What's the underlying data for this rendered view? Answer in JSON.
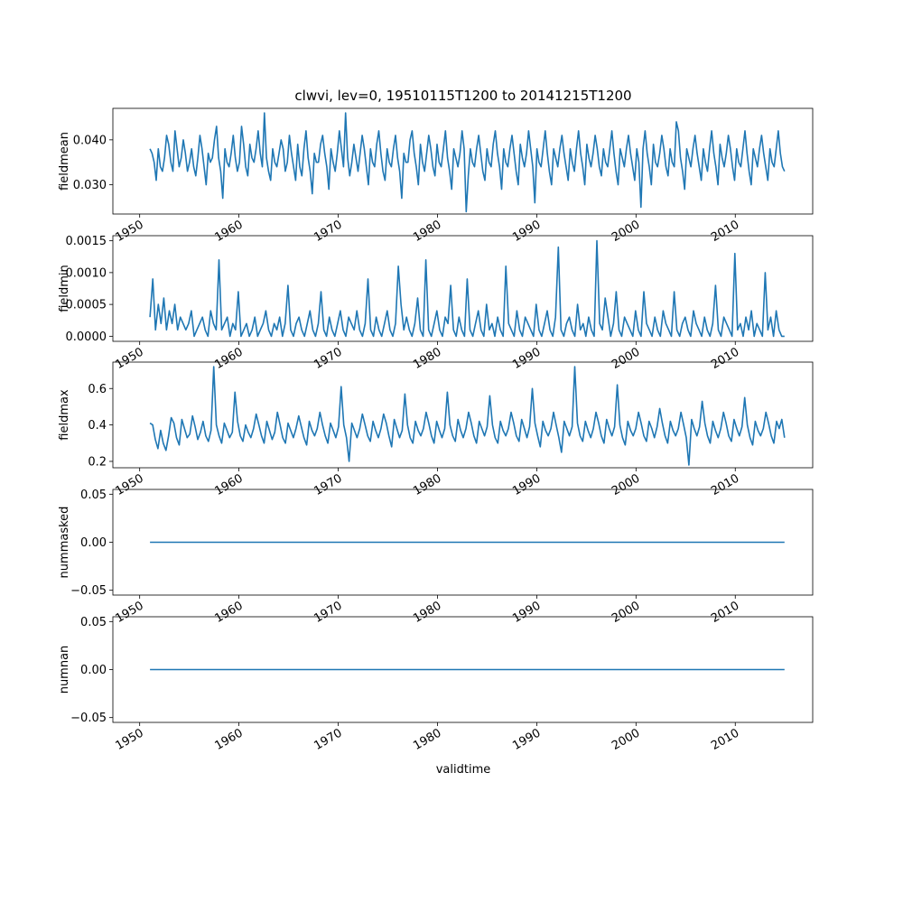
{
  "figure": {
    "title": "clwvi, lev=0, 19510115T1200 to 20141215T1200",
    "xlabel": "validtime"
  },
  "chart_data": [
    {
      "type": "line",
      "ylabel": "fieldmean",
      "x_range": [
        1947.3,
        2017.8
      ],
      "x_ticks": [
        1950,
        1960,
        1970,
        1980,
        1990,
        2000,
        2010
      ],
      "x_tick_labels": [
        "1950",
        "1960",
        "1970",
        "1980",
        "1990",
        "2000",
        "2010"
      ],
      "x_start": 1951.04,
      "x_end": 2014.96,
      "ylim": [
        0.0235,
        0.047
      ],
      "y_ticks": [
        0.03,
        0.04
      ],
      "y_tick_labels": [
        "0.030",
        "0.040"
      ],
      "series": [
        {
          "color": "#1f77b4",
          "values": [
            0.038,
            0.037,
            0.035,
            0.031,
            0.038,
            0.034,
            0.033,
            0.036,
            0.041,
            0.039,
            0.035,
            0.033,
            0.042,
            0.038,
            0.034,
            0.036,
            0.04,
            0.037,
            0.033,
            0.035,
            0.038,
            0.034,
            0.032,
            0.036,
            0.041,
            0.038,
            0.034,
            0.03,
            0.037,
            0.035,
            0.036,
            0.04,
            0.043,
            0.036,
            0.033,
            0.027,
            0.038,
            0.035,
            0.034,
            0.037,
            0.041,
            0.036,
            0.033,
            0.035,
            0.043,
            0.039,
            0.034,
            0.032,
            0.039,
            0.036,
            0.035,
            0.038,
            0.042,
            0.037,
            0.034,
            0.046,
            0.036,
            0.033,
            0.031,
            0.038,
            0.035,
            0.034,
            0.037,
            0.04,
            0.038,
            0.033,
            0.035,
            0.041,
            0.037,
            0.034,
            0.031,
            0.039,
            0.034,
            0.032,
            0.038,
            0.042,
            0.036,
            0.033,
            0.028,
            0.037,
            0.035,
            0.035,
            0.039,
            0.041,
            0.037,
            0.034,
            0.029,
            0.038,
            0.035,
            0.033,
            0.037,
            0.042,
            0.038,
            0.034,
            0.046,
            0.036,
            0.032,
            0.035,
            0.039,
            0.036,
            0.033,
            0.037,
            0.041,
            0.038,
            0.034,
            0.03,
            0.038,
            0.035,
            0.034,
            0.039,
            0.042,
            0.037,
            0.033,
            0.031,
            0.038,
            0.035,
            0.034,
            0.038,
            0.041,
            0.036,
            0.033,
            0.027,
            0.037,
            0.035,
            0.035,
            0.04,
            0.042,
            0.037,
            0.034,
            0.03,
            0.039,
            0.035,
            0.033,
            0.037,
            0.041,
            0.038,
            0.034,
            0.032,
            0.039,
            0.035,
            0.034,
            0.038,
            0.042,
            0.036,
            0.033,
            0.029,
            0.038,
            0.036,
            0.034,
            0.037,
            0.042,
            0.038,
            0.024,
            0.032,
            0.038,
            0.035,
            0.034,
            0.038,
            0.041,
            0.037,
            0.033,
            0.031,
            0.038,
            0.035,
            0.034,
            0.039,
            0.042,
            0.037,
            0.034,
            0.029,
            0.038,
            0.035,
            0.034,
            0.038,
            0.041,
            0.037,
            0.033,
            0.03,
            0.039,
            0.036,
            0.034,
            0.037,
            0.042,
            0.038,
            0.034,
            0.026,
            0.038,
            0.035,
            0.034,
            0.038,
            0.042,
            0.037,
            0.033,
            0.03,
            0.038,
            0.036,
            0.034,
            0.038,
            0.041,
            0.037,
            0.034,
            0.031,
            0.038,
            0.035,
            0.033,
            0.038,
            0.042,
            0.037,
            0.034,
            0.03,
            0.039,
            0.036,
            0.034,
            0.037,
            0.041,
            0.038,
            0.034,
            0.032,
            0.038,
            0.035,
            0.034,
            0.038,
            0.042,
            0.037,
            0.033,
            0.03,
            0.038,
            0.036,
            0.034,
            0.038,
            0.041,
            0.037,
            0.034,
            0.031,
            0.038,
            0.035,
            0.025,
            0.038,
            0.042,
            0.037,
            0.034,
            0.03,
            0.039,
            0.035,
            0.034,
            0.037,
            0.041,
            0.038,
            0.034,
            0.032,
            0.038,
            0.035,
            0.034,
            0.044,
            0.042,
            0.036,
            0.033,
            0.029,
            0.038,
            0.036,
            0.034,
            0.038,
            0.041,
            0.037,
            0.034,
            0.031,
            0.038,
            0.035,
            0.033,
            0.038,
            0.042,
            0.037,
            0.034,
            0.03,
            0.039,
            0.036,
            0.034,
            0.037,
            0.041,
            0.038,
            0.034,
            0.031,
            0.038,
            0.035,
            0.034,
            0.038,
            0.042,
            0.037,
            0.033,
            0.03,
            0.038,
            0.036,
            0.034,
            0.038,
            0.041,
            0.037,
            0.034,
            0.031,
            0.038,
            0.035,
            0.034,
            0.038,
            0.042,
            0.037,
            0.034,
            0.033
          ]
        }
      ]
    },
    {
      "type": "line",
      "ylabel": "fieldmin",
      "x_range": [
        1947.3,
        2017.8
      ],
      "x_ticks": [
        1950,
        1960,
        1970,
        1980,
        1990,
        2000,
        2010
      ],
      "x_tick_labels": [
        "1950",
        "1960",
        "1970",
        "1980",
        "1990",
        "2000",
        "2010"
      ],
      "x_start": 1951.04,
      "x_end": 2014.96,
      "ylim": [
        -8e-05,
        0.00158
      ],
      "y_ticks": [
        0.0,
        0.0005,
        0.001,
        0.0015
      ],
      "y_tick_labels": [
        "0.0000",
        "0.0005",
        "0.0010",
        "0.0015"
      ],
      "series": [
        {
          "color": "#1f77b4",
          "values": [
            0.0003,
            0.0009,
            0.0001,
            0.0005,
            0.0002,
            0.0006,
            0.0001,
            0.0004,
            0.0002,
            0.0005,
            0.0001,
            0.0003,
            0.0002,
            0.0001,
            0.0002,
            0.0004,
            0.0,
            0.0001,
            0.0002,
            0.0003,
            0.0001,
            0.0,
            0.0004,
            0.0002,
            0.0001,
            0.0012,
            0.0001,
            0.0002,
            0.0003,
            0.0,
            0.0002,
            0.0001,
            0.0007,
            0.0,
            0.0001,
            0.0002,
            0.0,
            0.0001,
            0.0003,
            0.0,
            0.0001,
            0.0002,
            0.0004,
            0.0001,
            0.0,
            0.0002,
            0.0001,
            0.0003,
            0.0,
            0.0002,
            0.0008,
            0.0001,
            0.0,
            0.0002,
            0.0003,
            0.0001,
            0.0,
            0.0002,
            0.0004,
            0.0001,
            0.0,
            0.0002,
            0.0007,
            0.0001,
            0.0,
            0.0003,
            0.0001,
            0.0,
            0.0002,
            0.0004,
            0.0001,
            0.0,
            0.0003,
            0.0002,
            0.0001,
            0.0004,
            0.0001,
            0.0,
            0.0002,
            0.0009,
            0.0001,
            0.0,
            0.0003,
            0.0001,
            0.0,
            0.0002,
            0.0004,
            0.0001,
            0.0,
            0.0002,
            0.0011,
            0.0005,
            0.0001,
            0.0003,
            0.0001,
            0.0,
            0.0002,
            0.0006,
            0.0001,
            0.0,
            0.0012,
            0.0001,
            0.0,
            0.0002,
            0.0004,
            0.0001,
            0.0,
            0.0003,
            0.0002,
            0.0008,
            0.0001,
            0.0,
            0.0003,
            0.0001,
            0.0,
            0.0009,
            0.0001,
            0.0,
            0.0002,
            0.0004,
            0.0001,
            0.0,
            0.0005,
            0.0001,
            0.0002,
            0.0,
            0.0003,
            0.0001,
            0.0,
            0.0011,
            0.0002,
            0.0001,
            0.0,
            0.0004,
            0.0001,
            0.0,
            0.0003,
            0.0002,
            0.0001,
            0.0,
            0.0005,
            0.0001,
            0.0,
            0.0002,
            0.0004,
            0.0001,
            0.0,
            0.0003,
            0.0014,
            0.0001,
            0.0,
            0.0002,
            0.0003,
            0.0001,
            0.0,
            0.0005,
            0.0001,
            0.0002,
            0.0,
            0.0003,
            0.0001,
            0.0,
            0.0015,
            0.0002,
            0.0001,
            0.0006,
            0.0003,
            0.0,
            0.0002,
            0.0007,
            0.0001,
            0.0,
            0.0003,
            0.0002,
            0.0001,
            0.0,
            0.0004,
            0.0001,
            0.0,
            0.0007,
            0.0002,
            0.0001,
            0.0,
            0.0003,
            0.0001,
            0.0,
            0.0004,
            0.0002,
            0.0001,
            0.0,
            0.0007,
            0.0001,
            0.0,
            0.0002,
            0.0003,
            0.0001,
            0.0,
            0.0004,
            0.0002,
            0.0001,
            0.0,
            0.0003,
            0.0001,
            0.0,
            0.0002,
            0.0008,
            0.0001,
            0.0,
            0.0003,
            0.0002,
            0.0001,
            0.0,
            0.0013,
            0.0001,
            0.0002,
            0.0,
            0.0003,
            0.0001,
            0.0004,
            0.0,
            0.0002,
            0.0001,
            0.0,
            0.001,
            0.0001,
            0.0003,
            0.0,
            0.0004,
            0.0001,
            0.0,
            0.0
          ]
        }
      ]
    },
    {
      "type": "line",
      "ylabel": "fieldmax",
      "x_range": [
        1947.3,
        2017.8
      ],
      "x_ticks": [
        1950,
        1960,
        1970,
        1980,
        1990,
        2000,
        2010
      ],
      "x_tick_labels": [
        "1950",
        "1960",
        "1970",
        "1980",
        "1990",
        "2000",
        "2010"
      ],
      "x_start": 1951.04,
      "x_end": 2014.96,
      "ylim": [
        0.165,
        0.745
      ],
      "y_ticks": [
        0.2,
        0.4,
        0.6
      ],
      "y_tick_labels": [
        "0.2",
        "0.4",
        "0.6"
      ],
      "series": [
        {
          "color": "#1f77b4",
          "values": [
            0.41,
            0.4,
            0.32,
            0.27,
            0.37,
            0.3,
            0.26,
            0.34,
            0.44,
            0.41,
            0.33,
            0.29,
            0.43,
            0.38,
            0.33,
            0.35,
            0.45,
            0.39,
            0.32,
            0.36,
            0.42,
            0.34,
            0.31,
            0.37,
            0.72,
            0.4,
            0.34,
            0.3,
            0.41,
            0.37,
            0.33,
            0.36,
            0.58,
            0.42,
            0.34,
            0.31,
            0.4,
            0.36,
            0.33,
            0.38,
            0.46,
            0.4,
            0.34,
            0.3,
            0.42,
            0.37,
            0.32,
            0.36,
            0.47,
            0.4,
            0.33,
            0.3,
            0.41,
            0.37,
            0.33,
            0.38,
            0.45,
            0.39,
            0.33,
            0.29,
            0.42,
            0.37,
            0.34,
            0.38,
            0.47,
            0.4,
            0.34,
            0.3,
            0.41,
            0.37,
            0.33,
            0.39,
            0.61,
            0.4,
            0.33,
            0.2,
            0.41,
            0.37,
            0.33,
            0.38,
            0.46,
            0.4,
            0.34,
            0.31,
            0.42,
            0.37,
            0.33,
            0.38,
            0.46,
            0.41,
            0.34,
            0.28,
            0.43,
            0.38,
            0.33,
            0.37,
            0.57,
            0.4,
            0.33,
            0.3,
            0.42,
            0.37,
            0.34,
            0.38,
            0.47,
            0.41,
            0.34,
            0.3,
            0.42,
            0.37,
            0.33,
            0.38,
            0.58,
            0.4,
            0.34,
            0.31,
            0.43,
            0.37,
            0.33,
            0.38,
            0.47,
            0.41,
            0.34,
            0.3,
            0.42,
            0.38,
            0.34,
            0.39,
            0.56,
            0.4,
            0.33,
            0.3,
            0.42,
            0.37,
            0.34,
            0.38,
            0.47,
            0.41,
            0.34,
            0.31,
            0.43,
            0.38,
            0.33,
            0.39,
            0.6,
            0.41,
            0.34,
            0.28,
            0.42,
            0.37,
            0.34,
            0.38,
            0.47,
            0.4,
            0.33,
            0.25,
            0.42,
            0.38,
            0.34,
            0.39,
            0.72,
            0.41,
            0.34,
            0.31,
            0.42,
            0.37,
            0.33,
            0.38,
            0.47,
            0.41,
            0.34,
            0.3,
            0.43,
            0.38,
            0.34,
            0.39,
            0.62,
            0.4,
            0.33,
            0.29,
            0.42,
            0.37,
            0.34,
            0.38,
            0.47,
            0.41,
            0.34,
            0.31,
            0.42,
            0.38,
            0.33,
            0.39,
            0.49,
            0.41,
            0.34,
            0.3,
            0.42,
            0.37,
            0.34,
            0.38,
            0.47,
            0.4,
            0.33,
            0.18,
            0.43,
            0.38,
            0.34,
            0.39,
            0.53,
            0.41,
            0.34,
            0.3,
            0.42,
            0.37,
            0.33,
            0.38,
            0.47,
            0.41,
            0.34,
            0.31,
            0.43,
            0.38,
            0.34,
            0.39,
            0.55,
            0.4,
            0.33,
            0.29,
            0.42,
            0.37,
            0.34,
            0.38,
            0.47,
            0.41,
            0.34,
            0.3,
            0.42,
            0.38,
            0.43,
            0.33
          ]
        }
      ]
    },
    {
      "type": "line",
      "ylabel": "nummasked",
      "x_range": [
        1947.3,
        2017.8
      ],
      "x_ticks": [
        1950,
        1960,
        1970,
        1980,
        1990,
        2000,
        2010
      ],
      "x_tick_labels": [
        "1950",
        "1960",
        "1970",
        "1980",
        "1990",
        "2000",
        "2010"
      ],
      "x_start": 1951.04,
      "x_end": 2014.96,
      "ylim": [
        -0.055,
        0.055
      ],
      "y_ticks": [
        -0.05,
        0.0,
        0.05
      ],
      "y_tick_labels": [
        "−0.05",
        "0.00",
        "0.05"
      ],
      "series": [
        {
          "color": "#1f77b4",
          "values": [
            0,
            0
          ]
        }
      ]
    },
    {
      "type": "line",
      "ylabel": "numnan",
      "x_range": [
        1947.3,
        2017.8
      ],
      "x_ticks": [
        1950,
        1960,
        1970,
        1980,
        1990,
        2000,
        2010
      ],
      "x_tick_labels": [
        "1950",
        "1960",
        "1970",
        "1980",
        "1990",
        "2000",
        "2010"
      ],
      "x_start": 1951.04,
      "x_end": 2014.96,
      "ylim": [
        -0.055,
        0.055
      ],
      "y_ticks": [
        -0.05,
        0.0,
        0.05
      ],
      "y_tick_labels": [
        "−0.05",
        "0.00",
        "0.05"
      ],
      "series": [
        {
          "color": "#1f77b4",
          "values": [
            0,
            0
          ]
        }
      ]
    }
  ]
}
